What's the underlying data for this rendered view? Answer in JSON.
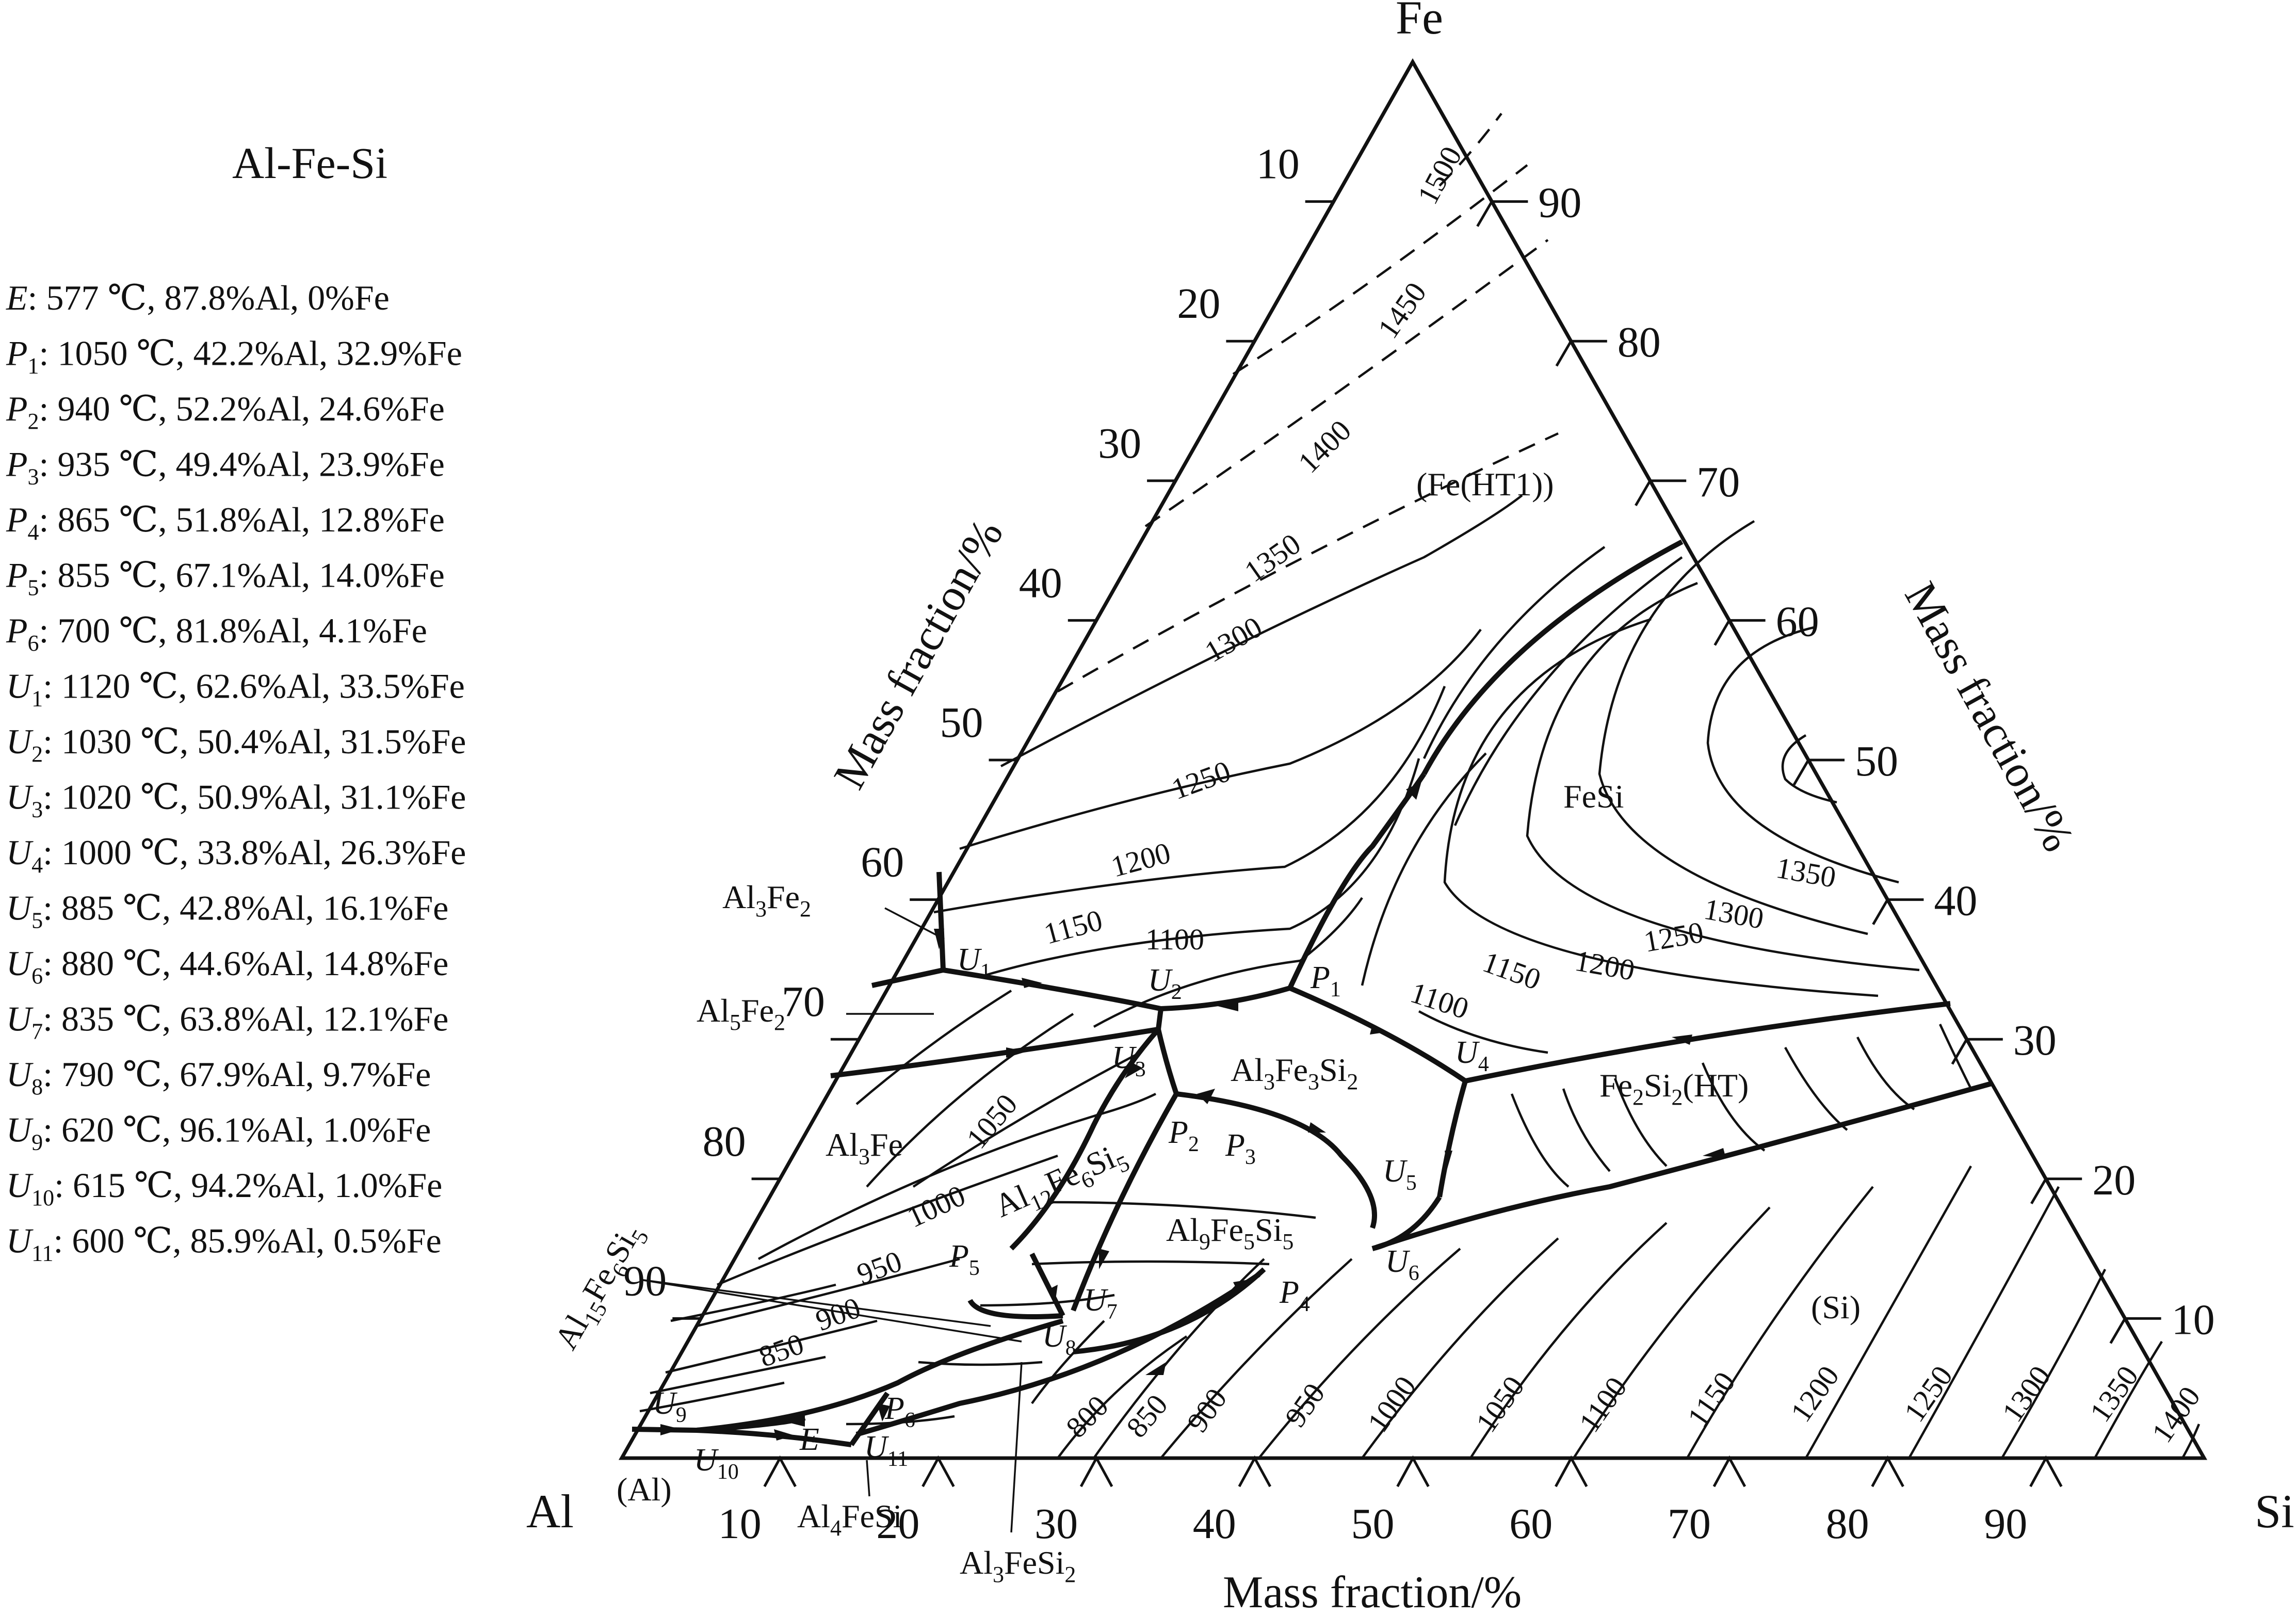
{
  "title": "Al-Fe-Si",
  "invariants": [
    {
      "sym": "E",
      "sub": "",
      "text": ": 577 ℃, 87.8%Al, 0%Fe"
    },
    {
      "sym": "P",
      "sub": "1",
      "text": ": 1050 ℃, 42.2%Al, 32.9%Fe"
    },
    {
      "sym": "P",
      "sub": "2",
      "text": ": 940 ℃, 52.2%Al, 24.6%Fe"
    },
    {
      "sym": "P",
      "sub": "3",
      "text": ": 935 ℃, 49.4%Al, 23.9%Fe"
    },
    {
      "sym": "P",
      "sub": "4",
      "text": ": 865 ℃, 51.8%Al, 12.8%Fe"
    },
    {
      "sym": "P",
      "sub": "5",
      "text": ": 855 ℃, 67.1%Al, 14.0%Fe"
    },
    {
      "sym": "P",
      "sub": "6",
      "text": ": 700 ℃, 81.8%Al, 4.1%Fe"
    },
    {
      "sym": "U",
      "sub": "1",
      "text": ": 1120 ℃, 62.6%Al, 33.5%Fe"
    },
    {
      "sym": "U",
      "sub": "2",
      "text": ": 1030 ℃, 50.4%Al, 31.5%Fe"
    },
    {
      "sym": "U",
      "sub": "3",
      "text": ": 1020 ℃, 50.9%Al, 31.1%Fe"
    },
    {
      "sym": "U",
      "sub": "4",
      "text": ": 1000 ℃, 33.8%Al, 26.3%Fe"
    },
    {
      "sym": "U",
      "sub": "5",
      "text": ": 885 ℃, 42.8%Al, 16.1%Fe"
    },
    {
      "sym": "U",
      "sub": "6",
      "text": ": 880 ℃, 44.6%Al, 14.8%Fe"
    },
    {
      "sym": "U",
      "sub": "7",
      "text": ": 835 ℃, 63.8%Al, 12.1%Fe"
    },
    {
      "sym": "U",
      "sub": "8",
      "text": ": 790 ℃, 67.9%Al, 9.7%Fe"
    },
    {
      "sym": "U",
      "sub": "9",
      "text": ": 620 ℃, 96.1%Al, 1.0%Fe"
    },
    {
      "sym": "U",
      "sub": "10",
      "text": ": 615 ℃, 94.2%Al, 1.0%Fe"
    },
    {
      "sym": "U",
      "sub": "11",
      "text": ": 600 ℃, 85.9%Al, 0.5%Fe"
    }
  ],
  "corners": {
    "top": "Fe",
    "left": "Al",
    "right": "Si"
  },
  "axis_labels": {
    "left": "Mass fraction/%",
    "right": "Mass fraction/%",
    "bottom": "Mass fraction/%"
  },
  "ticks": {
    "left": [
      "10",
      "20",
      "30",
      "40",
      "50",
      "60",
      "70",
      "80",
      "90"
    ],
    "right": [
      "90",
      "80",
      "70",
      "60",
      "50",
      "40",
      "30",
      "20",
      "10"
    ],
    "bottom": [
      "10",
      "20",
      "30",
      "40",
      "50",
      "60",
      "70",
      "80",
      "90"
    ]
  },
  "phases": {
    "fe_ht1": "(Fe(HT1))",
    "fesi": "FeSi",
    "fe2si2_a": "Fe",
    "fe2si2_s1": "2",
    "fe2si2_b": "Si",
    "fe2si2_s2": "2",
    "fe2si2_c": "(HT)",
    "si": "(Si)",
    "al_sol": "(Al)",
    "al3fe2_a": "Al",
    "al3fe2_s1": "3",
    "al3fe2_b": "Fe",
    "al3fe2_s2": "2",
    "al5fe2_a": "Al",
    "al5fe2_s1": "5",
    "al5fe2_b": "Fe",
    "al5fe2_s2": "2",
    "al3fe_a": "Al",
    "al3fe_s1": "3",
    "al3fe_b": "Fe",
    "al3fe3si2_a": "Al",
    "al3fe3si2_s1": "3",
    "al3fe3si2_b": "Fe",
    "al3fe3si2_s2": "3",
    "al3fe3si2_c": "Si",
    "al3fe3si2_s3": "2",
    "al12_a": "Al",
    "al12_s1": "12",
    "al12_b": "Fe",
    "al12_s2": "6",
    "al12_c": "Si",
    "al12_s3": "5",
    "al9_a": "Al",
    "al9_s1": "9",
    "al9_b": "Fe",
    "al9_s2": "5",
    "al9_c": "Si",
    "al9_s3": "5",
    "al15_a": "Al",
    "al15_s1": "15",
    "al15_b": "Fe",
    "al15_s2": "6",
    "al15_c": "Si",
    "al15_s3": "5",
    "al4fesi_a": "Al",
    "al4fesi_s1": "4",
    "al4fesi_b": "FeSi",
    "al3fesi2_a": "Al",
    "al3fesi2_s1": "3",
    "al3fesi2_b": "FeSi",
    "al3fesi2_s2": "2"
  },
  "isotherm_labels": {
    "t1500": "1500",
    "t1450": "1450",
    "t1400": "1400",
    "t1350": "1350",
    "t1300": "1300",
    "t1250": "1250",
    "t1200": "1200",
    "t1150": "1150",
    "t1100": "1100",
    "t1050": "1050",
    "t1000": "1000",
    "t950": "950",
    "t900": "900",
    "t850": "850",
    "r1350": "1350",
    "r1300": "1300",
    "r1250": "1250",
    "r1200": "1200",
    "r1150": "1150",
    "r1100": "1100",
    "b800": "800",
    "b850": "850",
    "b900": "900",
    "b950": "950",
    "b1000": "1000",
    "b1050": "1050",
    "b1100": "1100",
    "b1150": "1150",
    "b1200": "1200",
    "b1250": "1250",
    "b1300": "1300",
    "b1350": "1350",
    "b1400": "1400"
  },
  "points": {
    "U1": {
      "s": "U",
      "n": "1"
    },
    "U2": {
      "s": "U",
      "n": "2"
    },
    "U3": {
      "s": "U",
      "n": "3"
    },
    "U4": {
      "s": "U",
      "n": "4"
    },
    "U5": {
      "s": "U",
      "n": "5"
    },
    "U6": {
      "s": "U",
      "n": "6"
    },
    "U7": {
      "s": "U",
      "n": "7"
    },
    "U8": {
      "s": "U",
      "n": "8"
    },
    "U9": {
      "s": "U",
      "n": "9"
    },
    "U10": {
      "s": "U",
      "n": "10"
    },
    "U11": {
      "s": "U",
      "n": "11"
    },
    "P1": {
      "s": "P",
      "n": "1"
    },
    "P2": {
      "s": "P",
      "n": "2"
    },
    "P3": {
      "s": "P",
      "n": "3"
    },
    "P4": {
      "s": "P",
      "n": "4"
    },
    "P5": {
      "s": "P",
      "n": "5"
    },
    "P6": {
      "s": "P",
      "n": "6"
    },
    "E": {
      "s": "E",
      "n": ""
    }
  }
}
